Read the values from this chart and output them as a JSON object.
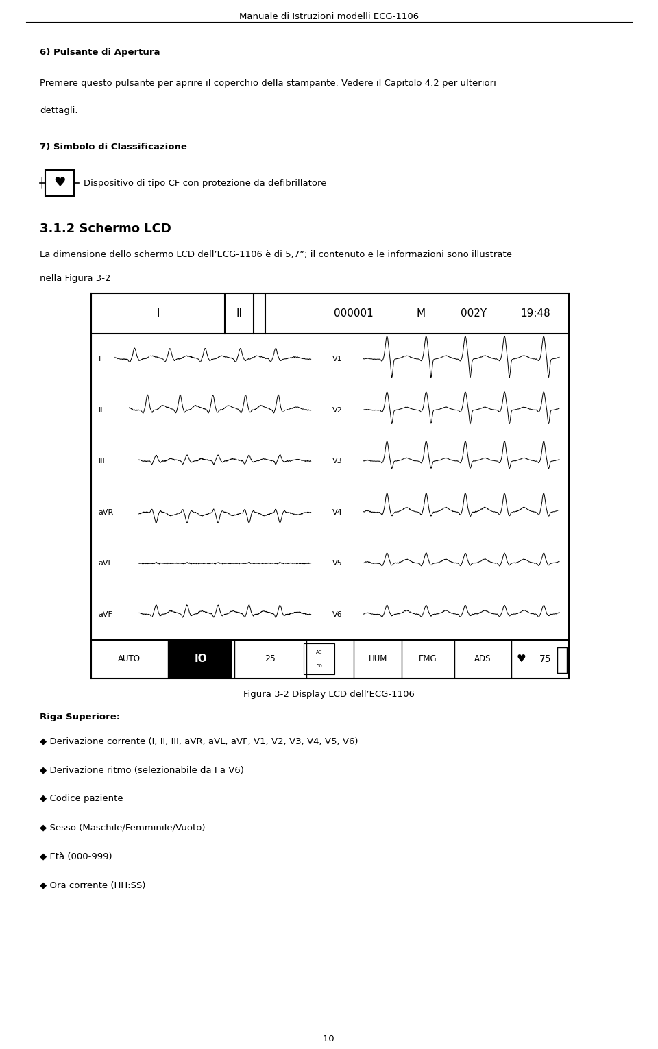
{
  "page_title": "Manuale di Istruzioni modelli ECG-1106",
  "page_number": "-10-",
  "background_color": "#ffffff",
  "text_color": "#000000",
  "section6_title": "6) Pulsante di Apertura",
  "section6_body_line1": "Premere questo pulsante per aprire il coperchio della stampante. Vedere il Capitolo 4.2 per ulteriori",
  "section6_body_line2": "dettagli.",
  "section7_title": "7) Simbolo di Classificazione",
  "section7_body": "Dispositivo di tipo CF con protezione da defibrillatore",
  "section312_title": "3.1.2 Schermo LCD",
  "section312_body1": "La dimensione dello schermo LCD dell’ECG-1106 è di 5,7”; il contenuto e le informazioni sono illustrate",
  "section312_body2": "nella Figura 3-2",
  "figure_caption": "Figura 3-2 Display LCD dell’ECG-1106",
  "section_riga": "Riga Superiore:",
  "bullet_items": [
    "Derivazione corrente (I, II, III, aVR, aVL, aVF, V1, V2, V3, V4, V5, V6)",
    "Derivazione ritmo (selezionabile da I a V6)",
    "Codice paziente",
    "Sesso (Maschile/Femminile/Vuoto)",
    "Età (000-999)",
    "Ora corrente (HH:SS)"
  ],
  "title_fontsize": 9.5,
  "body_fontsize": 9.5,
  "heading_fontsize": 10.0,
  "section312_title_fontsize": 13
}
